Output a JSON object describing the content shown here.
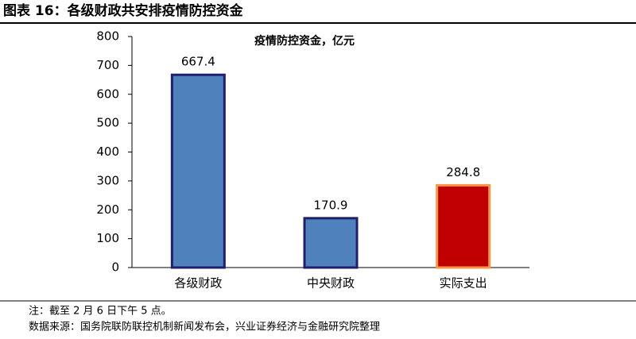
{
  "chart_data": {
    "type": "bar",
    "title": "图表 16：各级财政共安排疫情防控资金",
    "subtitle": "疫情防控资金，亿元",
    "categories": [
      "各级财政",
      "中央财政",
      "实际支出"
    ],
    "values": [
      667.4,
      170.9,
      284.8
    ],
    "colors": [
      "#4f81bd",
      "#4f81bd",
      "#c00000"
    ],
    "edge_colors": [
      "#1f1f6f",
      "#1f1f6f",
      "#f79646"
    ],
    "ylim": [
      0,
      800
    ],
    "yticks": [
      0,
      100,
      200,
      300,
      400,
      500,
      600,
      700,
      800
    ],
    "grid": false
  },
  "notes": [
    "注：截至 2 月 6 日下午 5 点。",
    "数据来源：国务院联防联控机制新闻发布会，兴业证券经济与金融研究院整理"
  ]
}
